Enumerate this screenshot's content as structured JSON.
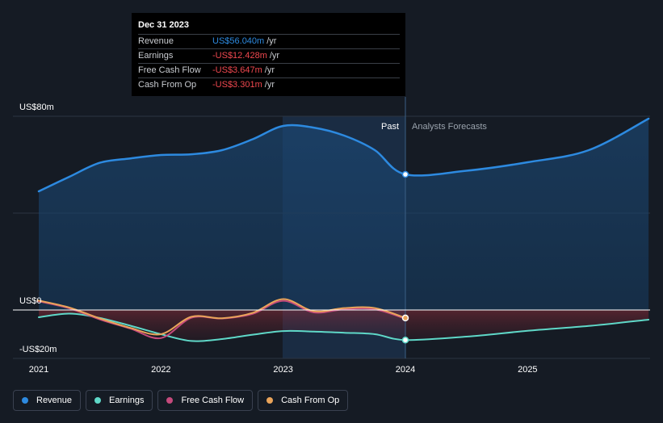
{
  "colors": {
    "revenue": "#2d8ae0",
    "earnings": "#5fd8c8",
    "free_cash_flow": "#c54a7c",
    "cash_from_op": "#e9a45a",
    "negative": "#f0484f",
    "background": "#151b24"
  },
  "tooltip": {
    "date": "Dec 31 2023",
    "rows": [
      {
        "label": "Revenue",
        "value": "US$56.040m",
        "unit": "/yr"
      },
      {
        "label": "Earnings",
        "value": "-US$12.428m",
        "unit": "/yr"
      },
      {
        "label": "Free Cash Flow",
        "value": "-US$3.647m",
        "unit": "/yr"
      },
      {
        "label": "Cash From Op",
        "value": "-US$3.301m",
        "unit": "/yr"
      }
    ]
  },
  "labels": {
    "past": "Past",
    "forecast": "Analysts Forecasts"
  },
  "legend": [
    {
      "label": "Revenue",
      "color_key": "revenue"
    },
    {
      "label": "Earnings",
      "color_key": "earnings"
    },
    {
      "label": "Free Cash Flow",
      "color_key": "free_cash_flow"
    },
    {
      "label": "Cash From Op",
      "color_key": "cash_from_op"
    }
  ],
  "chart_data": {
    "type": "line",
    "title": "",
    "xlabel": "",
    "ylabel": "",
    "y_tick_labels": [
      {
        "value": 80,
        "label": "US$80m"
      },
      {
        "value": 0,
        "label": "US$0"
      },
      {
        "value": -20,
        "label": "-US$20m"
      }
    ],
    "x_ticks": [
      2021,
      2022,
      2023,
      2024,
      2025
    ],
    "xlim": [
      2020.83,
      2025.99
    ],
    "ylim": [
      -20,
      80
    ],
    "past_end": 2024.0,
    "highlight_x": 2024.0,
    "grid": true,
    "legend_position": "bottom-left",
    "series": [
      {
        "name": "Revenue",
        "color_key": "revenue",
        "x": [
          2021.0,
          2021.25,
          2021.5,
          2021.75,
          2022.0,
          2022.25,
          2022.5,
          2022.75,
          2023.0,
          2023.25,
          2023.5,
          2023.75,
          2024.0,
          2024.5,
          2025.0,
          2025.5,
          2025.99
        ],
        "y": [
          49.0,
          55.0,
          60.8,
          62.6,
          64.0,
          64.3,
          66.0,
          70.5,
          76.0,
          75.3,
          72.0,
          66.0,
          56.0,
          57.5,
          61.0,
          66.0,
          79.0
        ]
      },
      {
        "name": "Earnings",
        "color_key": "earnings",
        "x": [
          2021.0,
          2021.25,
          2021.5,
          2021.75,
          2022.0,
          2022.25,
          2022.5,
          2022.75,
          2023.0,
          2023.25,
          2023.5,
          2023.75,
          2024.0,
          2024.5,
          2025.0,
          2025.5,
          2025.99
        ],
        "y": [
          -3.0,
          -1.5,
          -3.3,
          -6.5,
          -10.0,
          -12.8,
          -12.0,
          -10.2,
          -8.7,
          -8.9,
          -9.4,
          -10.0,
          -12.4,
          -11.0,
          -8.6,
          -6.6,
          -4.0
        ]
      },
      {
        "name": "Free Cash Flow",
        "color_key": "free_cash_flow",
        "x": [
          2020.99,
          2021.25,
          2021.5,
          2021.75,
          2022.0,
          2022.25,
          2022.5,
          2022.75,
          2023.0,
          2023.25,
          2023.5,
          2023.75,
          2024.0
        ],
        "y": [
          3.7,
          0.7,
          -3.9,
          -7.7,
          -11.6,
          -3.2,
          -3.5,
          -1.6,
          3.8,
          -1.0,
          0.3,
          0.3,
          -3.6
        ]
      },
      {
        "name": "Cash From Op",
        "color_key": "cash_from_op",
        "x": [
          2020.99,
          2021.25,
          2021.5,
          2021.75,
          2022.0,
          2022.25,
          2022.5,
          2022.75,
          2023.0,
          2023.25,
          2023.5,
          2023.75,
          2024.0
        ],
        "y": [
          4.0,
          1.0,
          -3.5,
          -7.4,
          -10.0,
          -2.8,
          -3.4,
          -1.2,
          4.5,
          -0.5,
          0.8,
          0.8,
          -3.3
        ]
      }
    ]
  }
}
